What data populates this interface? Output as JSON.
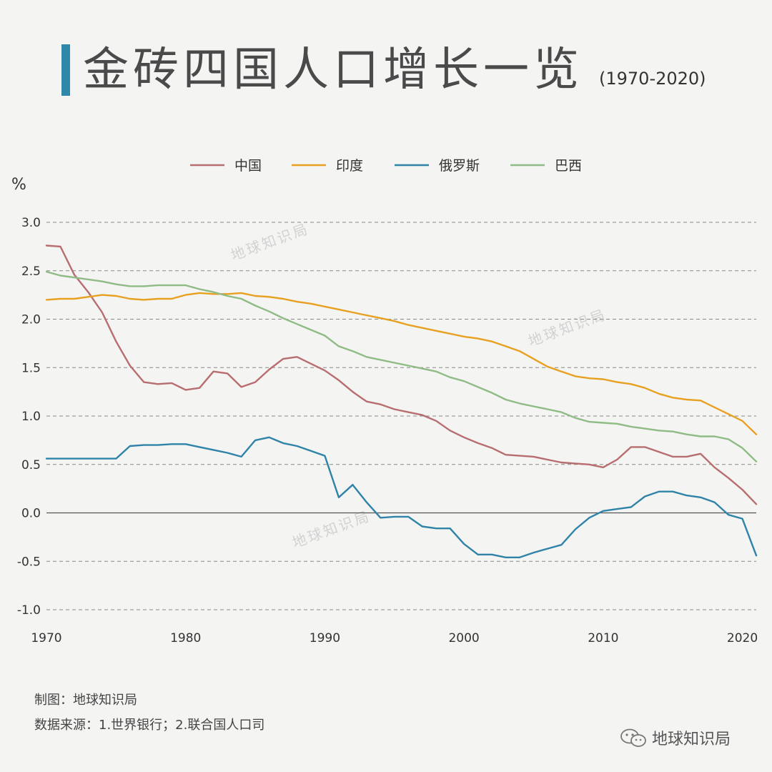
{
  "title": "金砖四国人口增长一览",
  "subtitle": "(1970-2020)",
  "footer": {
    "maker": "制图：地球知识局",
    "source": "数据来源：1.世界银行；2.联合国人口司"
  },
  "watermark": "地球知识局",
  "chart_data": {
    "type": "line",
    "ylabel": "%",
    "ylim": [
      -1.0,
      3.0
    ],
    "yticks": [
      3.0,
      2.5,
      2.0,
      1.5,
      1.0,
      0.5,
      0.0,
      -0.5,
      -1.0
    ],
    "ytick_labels": [
      "3.0",
      "2.5",
      "2.0",
      "1.5",
      "1.0",
      "0.5",
      "0.0",
      "-0.5",
      "-1.0"
    ],
    "xlim": [
      1970,
      2021
    ],
    "xticks": [
      1970,
      1980,
      1990,
      2000,
      2010,
      2020
    ],
    "xtick_labels": [
      "1970",
      "1980",
      "1990",
      "2000",
      "2010",
      "2020"
    ],
    "x": [
      1970,
      1971,
      1972,
      1973,
      1974,
      1975,
      1976,
      1977,
      1978,
      1979,
      1980,
      1981,
      1982,
      1983,
      1984,
      1985,
      1986,
      1987,
      1988,
      1989,
      1990,
      1991,
      1992,
      1993,
      1994,
      1995,
      1996,
      1997,
      1998,
      1999,
      2000,
      2001,
      2002,
      2003,
      2004,
      2005,
      2006,
      2007,
      2008,
      2009,
      2010,
      2011,
      2012,
      2013,
      2014,
      2015,
      2016,
      2017,
      2018,
      2019,
      2020,
      2021
    ],
    "series": [
      {
        "name": "中国",
        "color": "#b86d6f",
        "values": [
          2.76,
          2.75,
          2.46,
          2.28,
          2.07,
          1.77,
          1.52,
          1.35,
          1.33,
          1.34,
          1.27,
          1.29,
          1.46,
          1.44,
          1.3,
          1.35,
          1.48,
          1.59,
          1.61,
          1.54,
          1.47,
          1.37,
          1.25,
          1.15,
          1.12,
          1.07,
          1.04,
          1.01,
          0.95,
          0.85,
          0.78,
          0.72,
          0.67,
          0.6,
          0.59,
          0.58,
          0.55,
          0.52,
          0.51,
          0.5,
          0.47,
          0.55,
          0.68,
          0.68,
          0.63,
          0.58,
          0.58,
          0.61,
          0.47,
          0.36,
          0.24,
          0.09
        ]
      },
      {
        "name": "印度",
        "color": "#e8a020",
        "values": [
          2.2,
          2.21,
          2.21,
          2.23,
          2.25,
          2.24,
          2.21,
          2.2,
          2.21,
          2.21,
          2.25,
          2.27,
          2.26,
          2.26,
          2.27,
          2.24,
          2.23,
          2.21,
          2.18,
          2.16,
          2.13,
          2.1,
          2.07,
          2.04,
          2.01,
          1.98,
          1.94,
          1.91,
          1.88,
          1.85,
          1.82,
          1.8,
          1.77,
          1.72,
          1.67,
          1.59,
          1.51,
          1.46,
          1.41,
          1.39,
          1.38,
          1.35,
          1.33,
          1.29,
          1.23,
          1.19,
          1.17,
          1.16,
          1.09,
          1.02,
          0.95,
          0.81
        ]
      },
      {
        "name": "俄罗斯",
        "color": "#2f83a8",
        "values": [
          0.56,
          0.56,
          0.56,
          0.56,
          0.56,
          0.56,
          0.69,
          0.7,
          0.7,
          0.71,
          0.71,
          0.68,
          0.65,
          0.62,
          0.58,
          0.75,
          0.78,
          0.72,
          0.69,
          0.64,
          0.59,
          0.16,
          0.29,
          0.11,
          -0.05,
          -0.04,
          -0.04,
          -0.14,
          -0.16,
          -0.16,
          -0.32,
          -0.43,
          -0.43,
          -0.46,
          -0.46,
          -0.41,
          -0.37,
          -0.33,
          -0.17,
          -0.05,
          0.02,
          0.04,
          0.06,
          0.17,
          0.22,
          0.22,
          0.18,
          0.16,
          0.11,
          -0.02,
          -0.06,
          -0.44
        ]
      },
      {
        "name": "巴西",
        "color": "#8fbb85",
        "values": [
          2.49,
          2.45,
          2.43,
          2.41,
          2.39,
          2.36,
          2.34,
          2.34,
          2.35,
          2.35,
          2.35,
          2.31,
          2.28,
          2.24,
          2.21,
          2.14,
          2.08,
          2.01,
          1.95,
          1.89,
          1.83,
          1.72,
          1.67,
          1.61,
          1.58,
          1.55,
          1.52,
          1.49,
          1.46,
          1.4,
          1.36,
          1.3,
          1.24,
          1.17,
          1.13,
          1.1,
          1.07,
          1.04,
          0.98,
          0.94,
          0.93,
          0.92,
          0.89,
          0.87,
          0.85,
          0.84,
          0.81,
          0.79,
          0.79,
          0.76,
          0.67,
          0.53
        ]
      }
    ]
  }
}
